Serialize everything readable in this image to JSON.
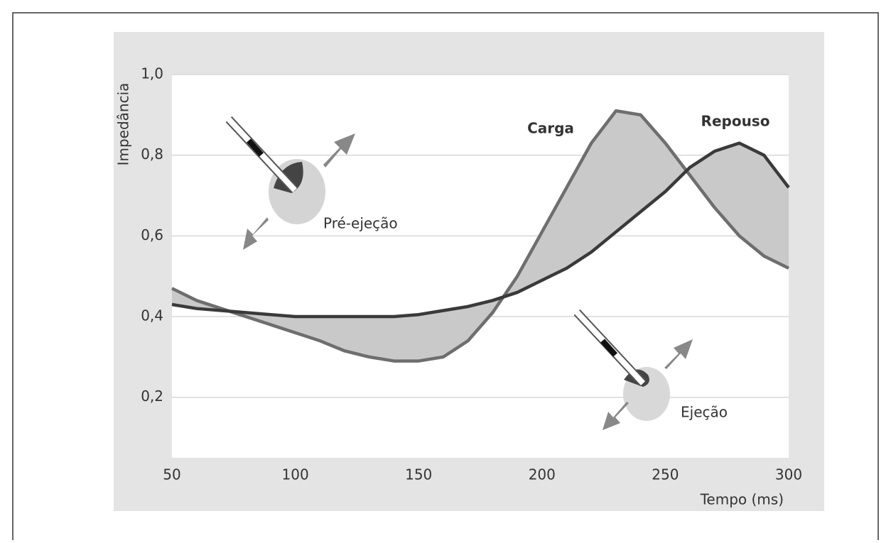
{
  "chart_data": {
    "type": "line",
    "y_label": "Impedância",
    "x_label": "Tempo (ms)",
    "x": [
      50,
      60,
      70,
      80,
      90,
      100,
      110,
      120,
      130,
      140,
      150,
      160,
      170,
      180,
      190,
      200,
      210,
      220,
      230,
      240,
      250,
      260,
      270,
      280,
      290,
      300
    ],
    "series": [
      {
        "name": "Carga",
        "color": "#6e6e6e",
        "values": [
          0.47,
          0.44,
          0.42,
          0.4,
          0.38,
          0.36,
          0.34,
          0.315,
          0.3,
          0.29,
          0.29,
          0.3,
          0.34,
          0.41,
          0.5,
          0.61,
          0.72,
          0.83,
          0.91,
          0.9,
          0.83,
          0.75,
          0.67,
          0.6,
          0.55,
          0.52
        ]
      },
      {
        "name": "Repouso",
        "color": "#3a3a3a",
        "values": [
          0.43,
          0.42,
          0.415,
          0.41,
          0.405,
          0.4,
          0.4,
          0.4,
          0.4,
          0.4,
          0.405,
          0.415,
          0.425,
          0.44,
          0.46,
          0.49,
          0.52,
          0.56,
          0.61,
          0.66,
          0.71,
          0.77,
          0.81,
          0.83,
          0.8,
          0.72
        ]
      }
    ],
    "fill_between_color": "#c9c9c9",
    "annotations": [
      "Pré-ejeção",
      "Ejeção"
    ],
    "xlim": [
      50,
      300
    ],
    "xticks": [
      50,
      100,
      150,
      200,
      250,
      300
    ],
    "ylim": [
      0.05,
      1.0
    ],
    "yticks": [
      {
        "value": 0.2,
        "label": "0,2"
      },
      {
        "value": 0.4,
        "label": "0,4"
      },
      {
        "value": 0.6,
        "label": "0,6"
      },
      {
        "value": 0.8,
        "label": "0,8"
      },
      {
        "value": 1.0,
        "label": "1,0"
      }
    ],
    "grid": true
  }
}
